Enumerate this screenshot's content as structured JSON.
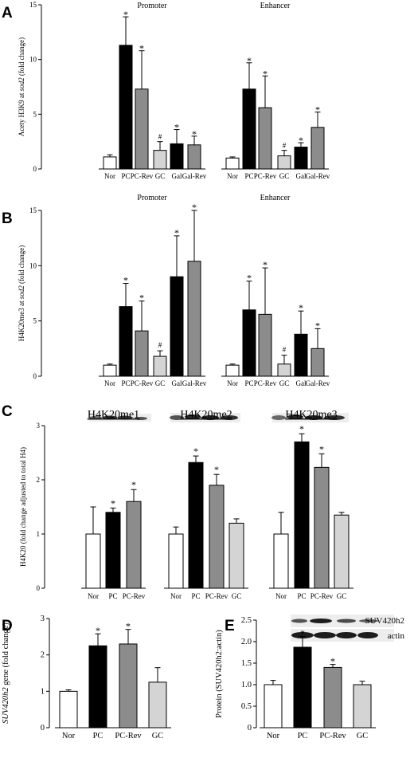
{
  "colors": {
    "Nor": "#ffffff",
    "PC": "#000000",
    "PC-Rev": "#8c8c8c",
    "GC": "#d4d4d4",
    "Gal": "#000000",
    "Gal-Rev": "#8c8c8c",
    "axis": "#000000"
  },
  "chart_data": [
    {
      "id": "A",
      "type": "bar",
      "panel_label": "A",
      "ylabel_parts": [
        "Acety H3K9 at ",
        "sod2",
        " (fold change)"
      ],
      "ylim": [
        0,
        15
      ],
      "yticks": [
        "0",
        "5",
        "10",
        "15"
      ],
      "groups": [
        {
          "title": "Promoter",
          "categories": [
            "Nor",
            "PC",
            "PC-Rev",
            "GC",
            "Gal",
            "Gal-Rev"
          ],
          "values": [
            1.1,
            11.3,
            7.3,
            1.7,
            2.3,
            2.2
          ],
          "errors": [
            0.2,
            2.6,
            3.5,
            0.8,
            1.3,
            0.8
          ],
          "markers": [
            "",
            "*",
            "*",
            "#",
            "*",
            "*"
          ]
        },
        {
          "title": "Enhancer",
          "categories": [
            "Nor",
            "PC",
            "PC-Rev",
            "GC",
            "Gal",
            "Gal-Rev"
          ],
          "values": [
            1.0,
            7.3,
            5.6,
            1.2,
            2.0,
            3.8
          ],
          "errors": [
            0.1,
            2.4,
            2.9,
            0.5,
            0.4,
            1.4
          ],
          "markers": [
            "",
            "*",
            "*",
            "#",
            "*",
            "*"
          ]
        }
      ]
    },
    {
      "id": "B",
      "type": "bar",
      "panel_label": "B",
      "ylabel_parts": [
        "H4K20me3 at ",
        "sod2",
        " (fold change)"
      ],
      "ylim": [
        0,
        15
      ],
      "yticks": [
        "0",
        "5",
        "10",
        "15"
      ],
      "groups": [
        {
          "title": "Promoter",
          "categories": [
            "Nor",
            "PC",
            "PC-Rev",
            "GC",
            "Gal",
            "Gal-Rev"
          ],
          "values": [
            1.0,
            6.3,
            4.1,
            1.8,
            9.0,
            10.4
          ],
          "errors": [
            0.1,
            2.1,
            2.7,
            0.5,
            3.7,
            4.6
          ],
          "markers": [
            "",
            "*",
            "*",
            "#",
            "*",
            "*"
          ]
        },
        {
          "title": "Enhancer",
          "categories": [
            "Nor",
            "PC",
            "PC-Rev",
            "GC",
            "Gal",
            "Gal-Rev"
          ],
          "values": [
            1.0,
            6.0,
            5.6,
            1.1,
            3.8,
            2.5
          ],
          "errors": [
            0.1,
            2.6,
            4.2,
            0.8,
            2.1,
            1.8
          ],
          "markers": [
            "",
            "*",
            "*",
            "#",
            "*",
            "*"
          ]
        }
      ]
    },
    {
      "id": "C",
      "type": "bar",
      "panel_label": "C",
      "ylabel_parts": [
        "H4K20 (fold change adjusted to total H4)"
      ],
      "ylim": [
        0,
        3
      ],
      "yticks": [
        "0",
        "1",
        "2",
        "3"
      ],
      "groups": [
        {
          "title": "H4K20me1",
          "categories": [
            "Nor",
            "PC",
            "PC-Rev"
          ],
          "values": [
            1.0,
            1.4,
            1.6
          ],
          "errors": [
            0.5,
            0.08,
            0.22
          ],
          "markers": [
            "",
            "*",
            "*"
          ]
        },
        {
          "title": "H4K20me2",
          "categories": [
            "Nor",
            "PC",
            "PC-Rev",
            "GC"
          ],
          "values": [
            1.0,
            2.32,
            1.9,
            1.2
          ],
          "errors": [
            0.13,
            0.12,
            0.2,
            0.08
          ],
          "markers": [
            "",
            "*",
            "*",
            ""
          ]
        },
        {
          "title": "H4K20me3",
          "categories": [
            "Nor",
            "PC",
            "PC-Rev",
            "GC"
          ],
          "values": [
            1.0,
            2.7,
            2.23,
            1.35
          ],
          "errors": [
            0.4,
            0.15,
            0.25,
            0.05
          ],
          "markers": [
            "",
            "*",
            "*",
            ""
          ]
        }
      ]
    },
    {
      "id": "D",
      "type": "bar",
      "panel_label": "D",
      "ylabel_parts": [
        "SUV420h2",
        " gene (fold change)"
      ],
      "ylim": [
        0,
        3
      ],
      "yticks": [
        "0",
        "1",
        "2",
        "3"
      ],
      "groups": [
        {
          "title": "",
          "categories": [
            "Nor",
            "PC",
            "PC-Rev",
            "GC"
          ],
          "values": [
            1.0,
            2.25,
            2.3,
            1.25
          ],
          "errors": [
            0.04,
            0.33,
            0.4,
            0.4
          ],
          "markers": [
            "",
            "*",
            "*",
            ""
          ]
        }
      ]
    },
    {
      "id": "E",
      "type": "bar",
      "panel_label": "E",
      "ylabel_parts": [
        "Protein (SUV420h2:actin)"
      ],
      "ylim": [
        0,
        2.5
      ],
      "yticks": [
        "0",
        "0.5",
        "1.0",
        "1.5",
        "2.0",
        "2.5"
      ],
      "blot_labels": [
        "SUV420h2",
        "actin"
      ],
      "groups": [
        {
          "title": "",
          "categories": [
            "Nor",
            "PC",
            "PC-Rev",
            "GC"
          ],
          "values": [
            1.0,
            1.87,
            1.4,
            1.0
          ],
          "errors": [
            0.1,
            0.25,
            0.07,
            0.08
          ],
          "markers": [
            "",
            "*",
            "*",
            ""
          ]
        }
      ]
    }
  ]
}
